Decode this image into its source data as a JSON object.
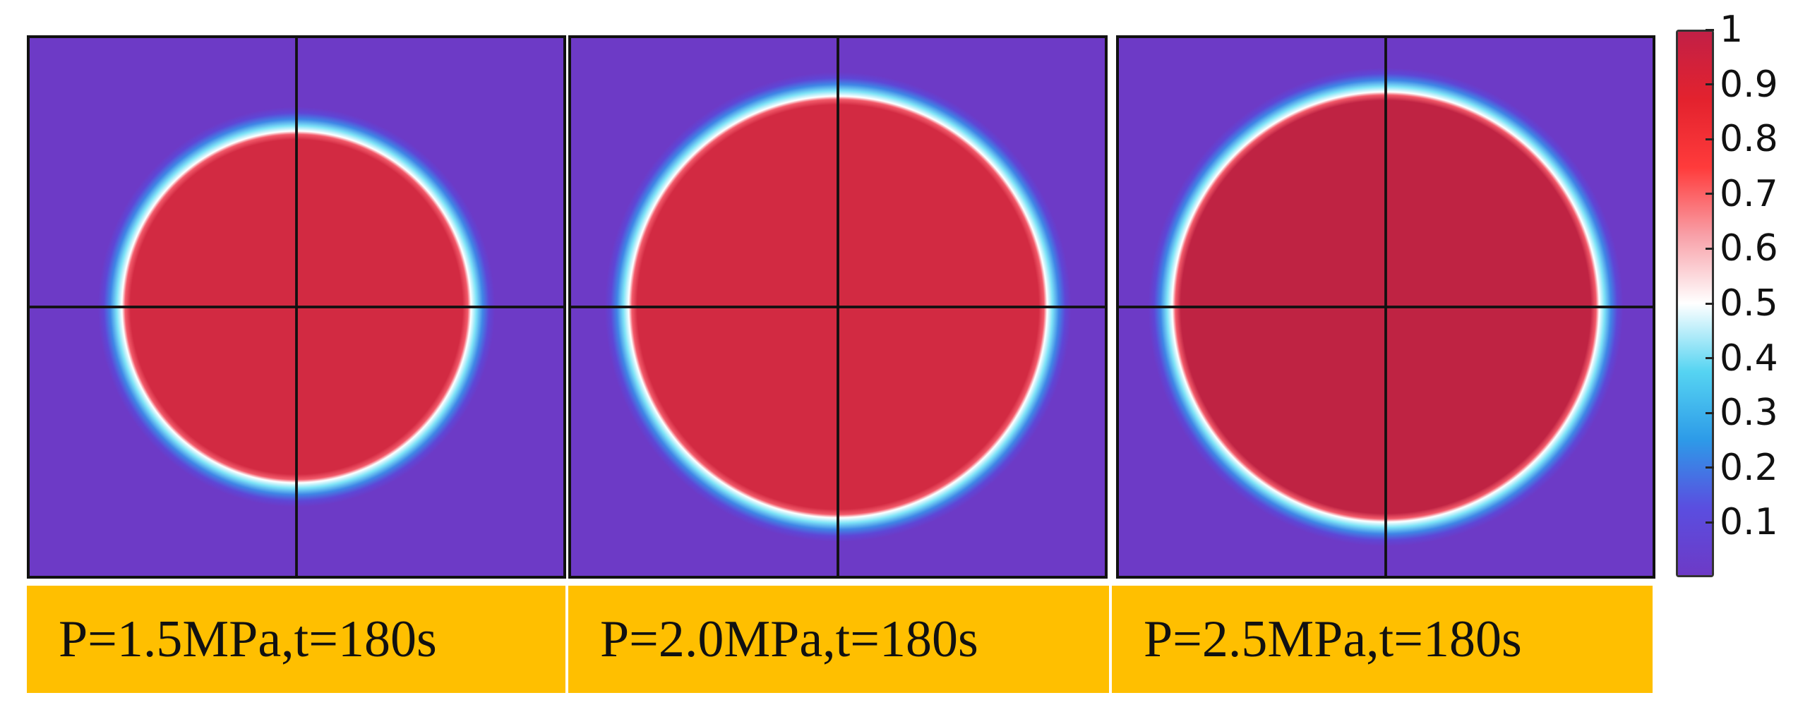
{
  "panels": [
    {
      "caption": "P=1.5MPa,t=180s",
      "radius_fraction": 0.327,
      "fill": "#d22a42"
    },
    {
      "caption": "P=2.0MPa,t=180s",
      "radius_fraction": 0.392,
      "fill": "#d22a42"
    },
    {
      "caption": "P=2.5MPa,t=180s",
      "radius_fraction": 0.4,
      "fill": "#bf2343"
    }
  ],
  "colors": {
    "background": "#6d3ac6",
    "caption_background": "#ffbf00",
    "crosshair": "#111111"
  },
  "colorbar": {
    "ticks": [
      "1",
      "0.9",
      "0.8",
      "0.7",
      "0.6",
      "0.5",
      "0.4",
      "0.3",
      "0.2",
      "0.1"
    ],
    "range": [
      0,
      1
    ],
    "stops": [
      "#6d3ac6",
      "#5a4ee0",
      "#2d9be8",
      "#56d4f2",
      "#ffffff",
      "#f8a0a8",
      "#ff3b3b",
      "#e3222e",
      "#c22046"
    ]
  }
}
